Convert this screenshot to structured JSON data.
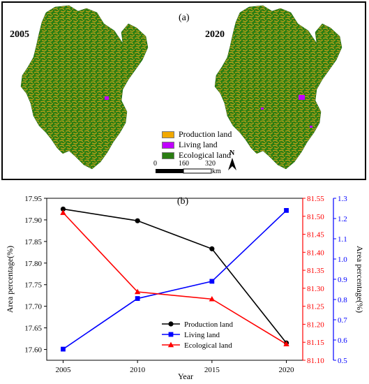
{
  "maps": {
    "panel_label": "(a)",
    "left_year": "2005",
    "right_year": "2020",
    "legend": [
      {
        "label": "Production land",
        "color": "#f2a900"
      },
      {
        "label": "Living land",
        "color": "#c000ff"
      },
      {
        "label": "Ecological land",
        "color": "#2a7d12"
      }
    ],
    "scalebar": {
      "ticks": [
        "0",
        "160",
        "320"
      ],
      "unit": "km"
    },
    "north_label": "N"
  },
  "chart_data": {
    "type": "line",
    "panel_label": "(b)",
    "x": [
      2005,
      2010,
      2015,
      2020
    ],
    "xlabel": "Year",
    "x_ticks": [
      "2005",
      "2010",
      "2015",
      "2020"
    ],
    "series": [
      {
        "name": "Production land",
        "axis": "left",
        "color": "#000000",
        "marker": "circle",
        "values": [
          17.925,
          17.898,
          17.833,
          17.615
        ]
      },
      {
        "name": "Living land",
        "axis": "right2",
        "color": "#0000ff",
        "marker": "square",
        "values": [
          0.555,
          0.805,
          0.89,
          1.24
        ]
      },
      {
        "name": "Ecological land",
        "axis": "right1",
        "color": "#ff0000",
        "marker": "triangle",
        "values": [
          81.51,
          81.29,
          81.27,
          81.145
        ]
      }
    ],
    "y_left": {
      "label": "Area percentage(%)",
      "ylim": [
        17.575,
        17.95
      ],
      "ticks": [
        "17.60",
        "17.65",
        "17.70",
        "17.75",
        "17.80",
        "17.85",
        "17.90",
        "17.95"
      ]
    },
    "y_right1": {
      "ylim": [
        81.1,
        81.55
      ],
      "ticks": [
        "81.10",
        "81.15",
        "81.20",
        "81.25",
        "81.30",
        "81.35",
        "81.40",
        "81.45",
        "81.50",
        "81.55"
      ]
    },
    "y_right2": {
      "label": "Area percentage(%)",
      "ylim": [
        0.5,
        1.3
      ],
      "ticks": [
        "0.5",
        "0.6",
        "0.7",
        "0.8",
        "0.9",
        "1.0",
        "1.1",
        "1.2",
        "1.3"
      ]
    },
    "legend_position": "lower-center"
  }
}
